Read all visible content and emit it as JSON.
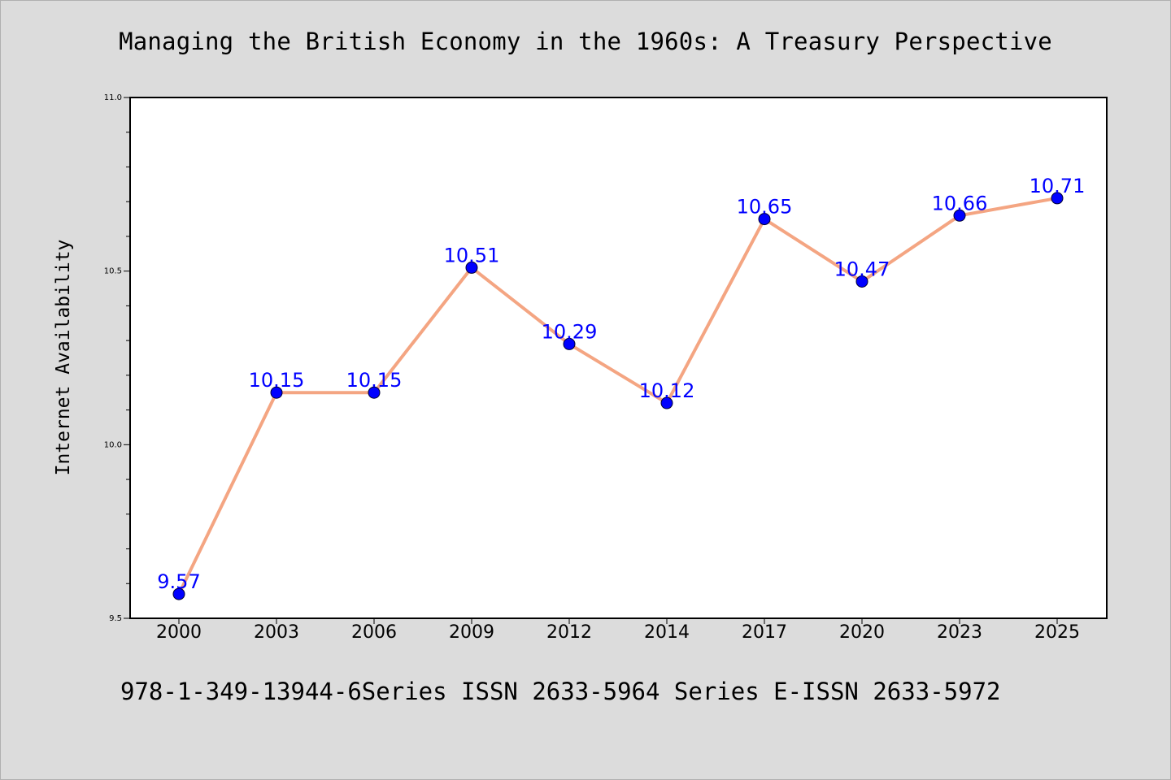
{
  "header": {
    "title": "Managing the British Economy in the 1960s: A Treasury Perspective"
  },
  "footer": {
    "text": "978-1-349-13944-6Series ISSN 2633-5964 Series E-ISSN 2633-5972"
  },
  "colors": {
    "background": "#dcdcdc",
    "line": "#f4a582",
    "marker": "#0000ff",
    "label": "#0000ff"
  },
  "chart_data": {
    "type": "line",
    "title": "",
    "xlabel": "",
    "ylabel": "Internet Availability",
    "categories": [
      "2000",
      "2003",
      "2006",
      "2009",
      "2012",
      "2014",
      "2017",
      "2020",
      "2023",
      "2025"
    ],
    "values": [
      9.57,
      10.15,
      10.15,
      10.51,
      10.29,
      10.12,
      10.65,
      10.47,
      10.66,
      10.71
    ],
    "data_labels": [
      "9.57",
      "10.15",
      "10.15",
      "10.51",
      "10.29",
      "10.12",
      "10.65",
      "10.47",
      "10.66",
      "10.71"
    ],
    "ylim": [
      9.5,
      11.0
    ],
    "yticks": [
      "9.5",
      "10.0",
      "10.5",
      "11.0"
    ],
    "grid": false,
    "legend": "none"
  }
}
